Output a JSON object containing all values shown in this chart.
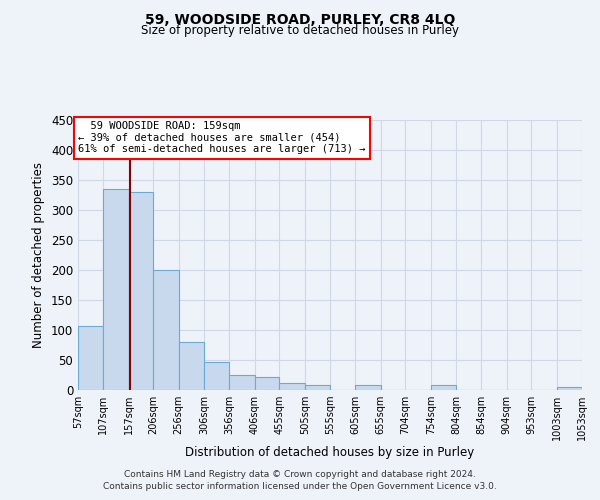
{
  "title": "59, WOODSIDE ROAD, PURLEY, CR8 4LQ",
  "subtitle": "Size of property relative to detached houses in Purley",
  "xlabel": "Distribution of detached houses by size in Purley",
  "ylabel": "Number of detached properties",
  "footer_line1": "Contains HM Land Registry data © Crown copyright and database right 2024.",
  "footer_line2": "Contains public sector information licensed under the Open Government Licence v3.0.",
  "bin_edges": [
    57,
    107,
    157,
    206,
    256,
    306,
    356,
    406,
    455,
    505,
    555,
    605,
    655,
    704,
    754,
    804,
    854,
    904,
    953,
    1003,
    1053
  ],
  "bin_labels": [
    "57sqm",
    "107sqm",
    "157sqm",
    "206sqm",
    "256sqm",
    "306sqm",
    "356sqm",
    "406sqm",
    "455sqm",
    "505sqm",
    "555sqm",
    "605sqm",
    "655sqm",
    "704sqm",
    "754sqm",
    "804sqm",
    "854sqm",
    "904sqm",
    "953sqm",
    "1003sqm",
    "1053sqm"
  ],
  "bar_heights": [
    107,
    335,
    330,
    200,
    80,
    46,
    25,
    22,
    11,
    8,
    0,
    8,
    0,
    0,
    8,
    0,
    0,
    0,
    0,
    5
  ],
  "bar_color": "#c8d9ee",
  "bar_edge_color": "#6aaad4",
  "ylim": [
    0,
    450
  ],
  "yticks": [
    0,
    50,
    100,
    150,
    200,
    250,
    300,
    350,
    400,
    450
  ],
  "red_line_x": 159,
  "annotation_text_line1": "59 WOODSIDE ROAD: 159sqm",
  "annotation_text_line2": "← 39% of detached houses are smaller (454)",
  "annotation_text_line3": "61% of semi-detached houses are larger (713) →",
  "bg_color": "#eef2f9",
  "grid_color": "#d0d8e8"
}
